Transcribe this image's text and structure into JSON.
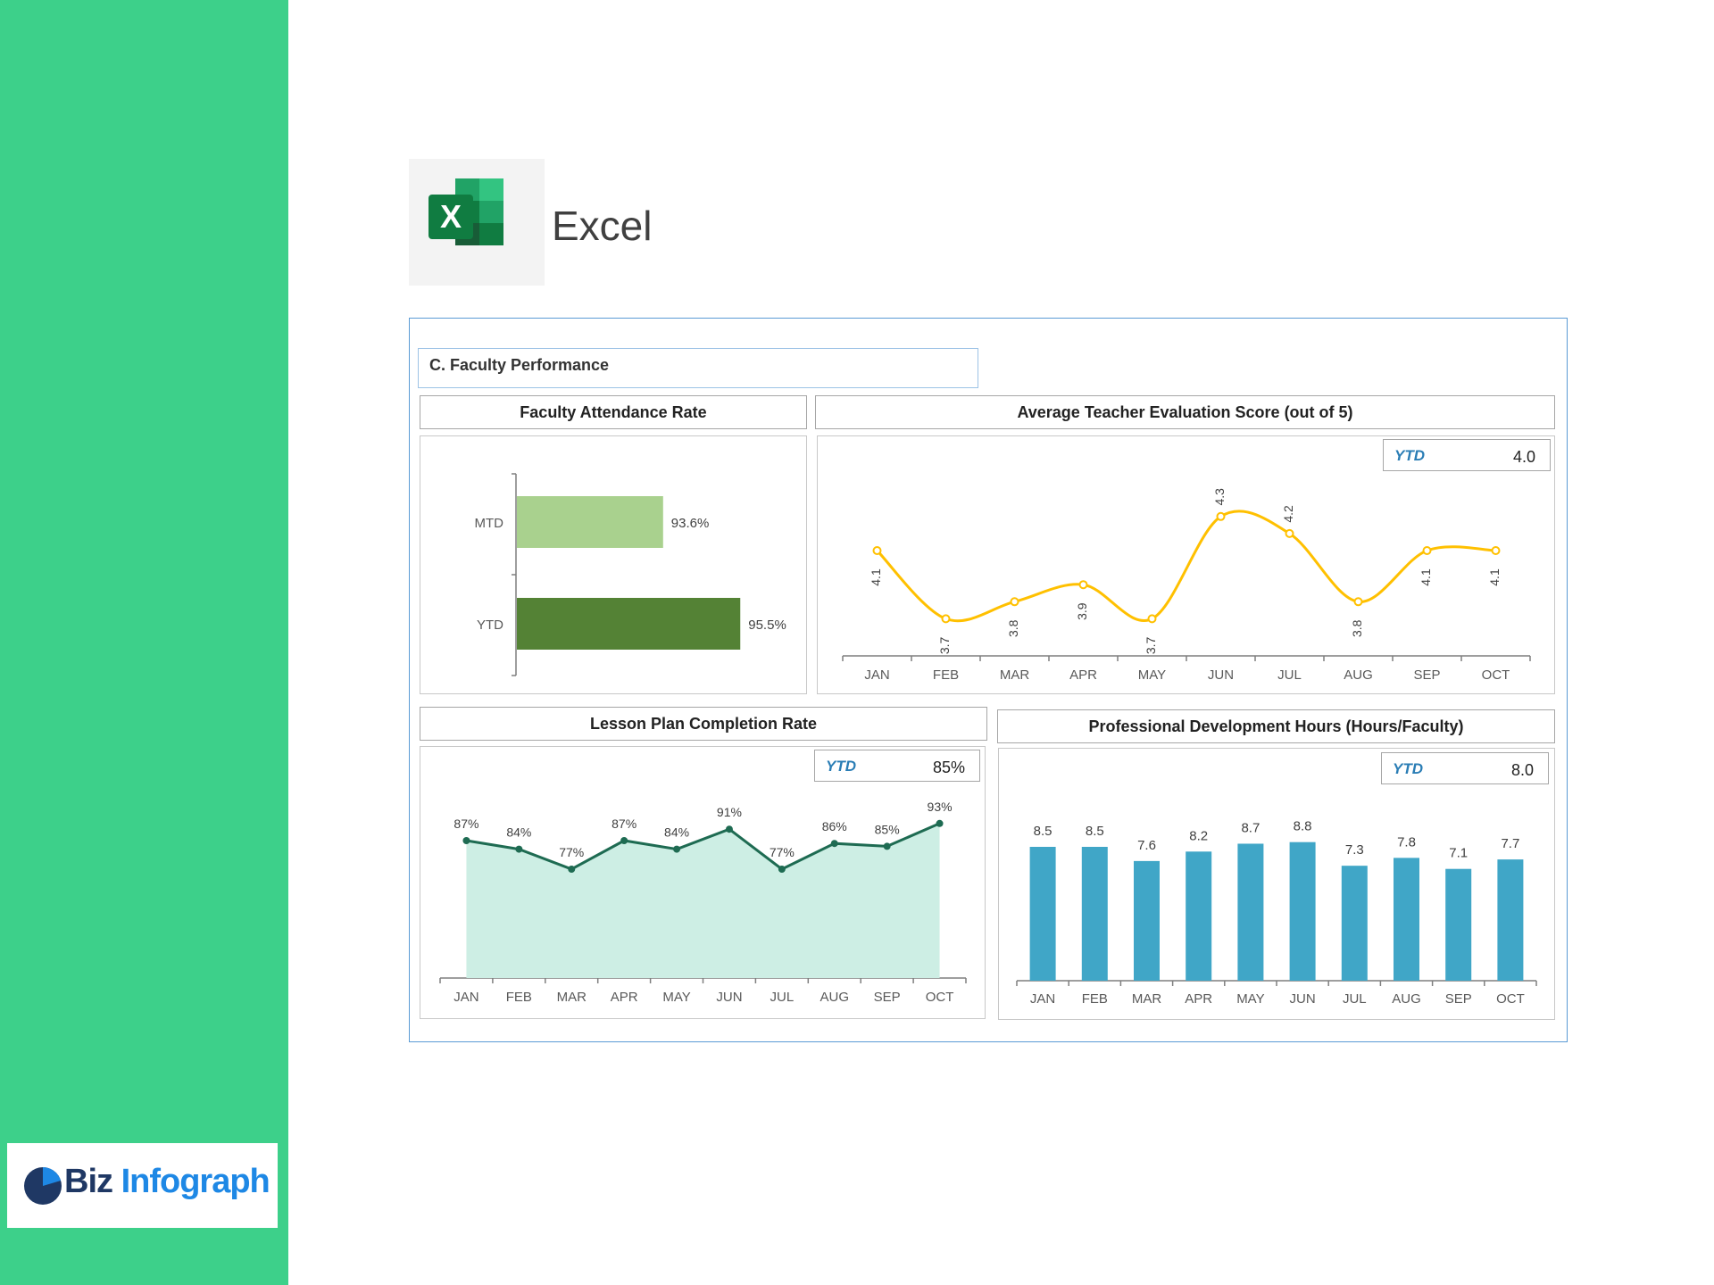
{
  "app": {
    "name": "Excel",
    "icon_letter": "X",
    "icon": "excel-icon"
  },
  "brand": {
    "part1": "Biz",
    "part2": "Infograph",
    "icon": "pie-logo-icon"
  },
  "section": {
    "title": "C. Faculty Performance"
  },
  "colors": {
    "sidebar": "#3dd08a",
    "mtd_bar": "#a9d18e",
    "ytd_bar": "#548235",
    "evaluation_line": "#ffc000",
    "lesson_line": "#1e6b52",
    "lesson_fill": "#cdeee4",
    "pd_bar": "#40a6c7",
    "ytd_label": "#2a7db5"
  },
  "panels": {
    "attendance": {
      "title": "Faculty Attendance Rate"
    },
    "evaluation": {
      "title": "Average Teacher Evaluation Score (out of 5)",
      "ytd_label": "YTD",
      "ytd_value": "4.0"
    },
    "lesson": {
      "title": "Lesson Plan Completion Rate",
      "ytd_label": "YTD",
      "ytd_value": "85%"
    },
    "pd": {
      "title": "Professional Development Hours (Hours/Faculty)",
      "ytd_label": "YTD",
      "ytd_value": "8.0"
    }
  },
  "chart_data": [
    {
      "id": "attendance",
      "type": "bar",
      "orientation": "horizontal",
      "title": "Faculty Attendance Rate",
      "categories": [
        "MTD",
        "YTD"
      ],
      "values": [
        93.6,
        95.5
      ],
      "labels": [
        "93.6%",
        "95.5%"
      ],
      "xlim": [
        90,
        96
      ],
      "grid": false
    },
    {
      "id": "evaluation",
      "type": "line",
      "title": "Average Teacher Evaluation Score (out of 5)",
      "categories": [
        "JAN",
        "FEB",
        "MAR",
        "APR",
        "MAY",
        "JUN",
        "JUL",
        "AUG",
        "SEP",
        "OCT"
      ],
      "values": [
        4.1,
        3.7,
        3.8,
        3.9,
        3.7,
        4.3,
        4.2,
        3.8,
        4.1,
        4.1
      ],
      "labels": [
        "4.1",
        "3.7",
        "3.8",
        "3.9",
        "3.7",
        "4.3",
        "4.2",
        "3.8",
        "4.1",
        "4.1"
      ],
      "smooth": true,
      "grid": false
    },
    {
      "id": "lesson",
      "type": "area",
      "title": "Lesson Plan Completion Rate",
      "categories": [
        "JAN",
        "FEB",
        "MAR",
        "APR",
        "MAY",
        "JUN",
        "JUL",
        "AUG",
        "SEP",
        "OCT"
      ],
      "values": [
        87,
        84,
        77,
        87,
        84,
        91,
        77,
        86,
        85,
        93
      ],
      "labels": [
        "87%",
        "84%",
        "77%",
        "87%",
        "84%",
        "91%",
        "77%",
        "86%",
        "85%",
        "93%"
      ],
      "grid": false
    },
    {
      "id": "pd",
      "type": "bar",
      "title": "Professional Development Hours (Hours/Faculty)",
      "categories": [
        "JAN",
        "FEB",
        "MAR",
        "APR",
        "MAY",
        "JUN",
        "JUL",
        "AUG",
        "SEP",
        "OCT"
      ],
      "values": [
        8.5,
        8.5,
        7.6,
        8.2,
        8.7,
        8.8,
        7.3,
        7.8,
        7.1,
        7.7
      ],
      "labels": [
        "8.5",
        "8.5",
        "7.6",
        "8.2",
        "8.7",
        "8.8",
        "7.3",
        "7.8",
        "7.1",
        "7.7"
      ],
      "ylim": [
        0,
        10
      ],
      "grid": false
    }
  ]
}
